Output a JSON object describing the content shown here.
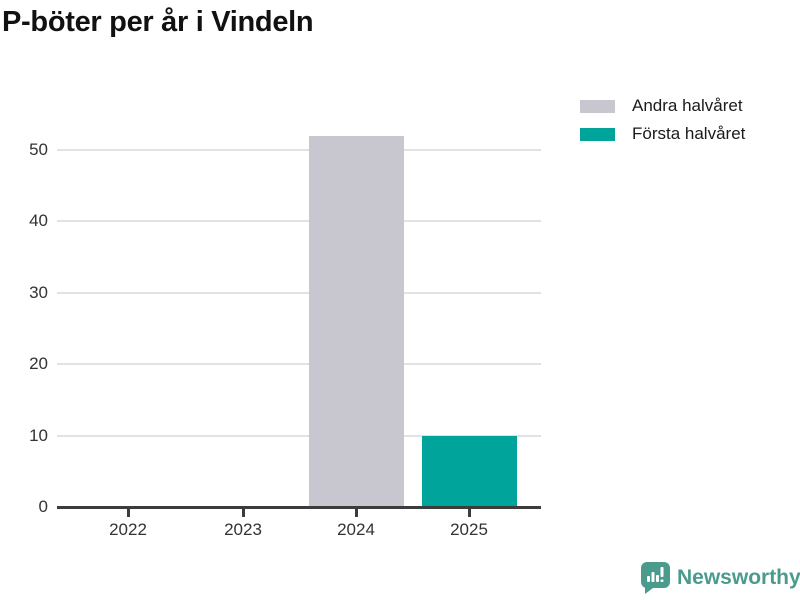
{
  "chart_data": {
    "type": "bar",
    "title": "P-böter per år i Vindeln",
    "categories": [
      "2022",
      "2023",
      "2024",
      "2025"
    ],
    "series": [
      {
        "name": "Andra halvåret",
        "color": "#c8c6ce",
        "values": [
          0,
          0,
          52,
          0
        ]
      },
      {
        "name": "Första halvåret",
        "color": "#00a49b",
        "values": [
          0,
          0,
          0,
          10
        ]
      }
    ],
    "xlabel": "",
    "ylabel": "",
    "ylim": [
      0,
      55
    ],
    "yticks": [
      0,
      10,
      20,
      30,
      40,
      50
    ],
    "grid": "horizontal",
    "legend_position": "top-right"
  },
  "colors": {
    "gridline": "#e2e2e4",
    "axis_line": "#3c3c3c",
    "axis_text": "#333333",
    "title_text": "#111111",
    "brand_teal": "#4a9b8c"
  },
  "footer": {
    "brand": "Newsworthy",
    "logo_icon": "bar-chart-speech-bubble"
  }
}
